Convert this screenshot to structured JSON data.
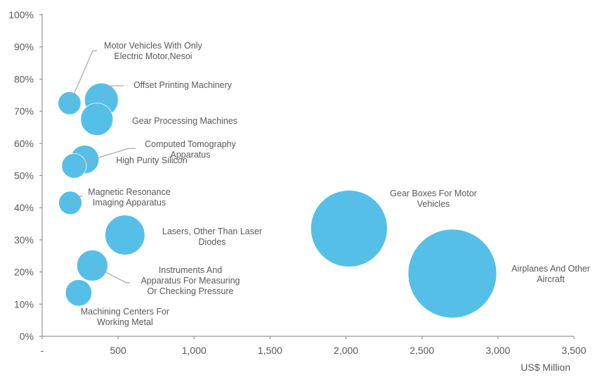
{
  "chart_data": {
    "type": "bubble",
    "title": "",
    "xlabel": "US$ Million",
    "ylabel": "",
    "xlim": [
      0,
      3500
    ],
    "ylim": [
      0,
      100
    ],
    "x_ticks": [
      {
        "value": 0,
        "label": "-"
      },
      {
        "value": 500,
        "label": "500"
      },
      {
        "value": 1000,
        "label": "1,000"
      },
      {
        "value": 1500,
        "label": "1,500"
      },
      {
        "value": 2000,
        "label": "2,000"
      },
      {
        "value": 2500,
        "label": "2,500"
      },
      {
        "value": 3000,
        "label": "3,000"
      },
      {
        "value": 3500,
        "label": "3,500"
      }
    ],
    "y_ticks": [
      {
        "value": 0,
        "label": "0%"
      },
      {
        "value": 10,
        "label": "10%"
      },
      {
        "value": 20,
        "label": "20%"
      },
      {
        "value": 30,
        "label": "30%"
      },
      {
        "value": 40,
        "label": "40%"
      },
      {
        "value": 50,
        "label": "50%"
      },
      {
        "value": 60,
        "label": "60%"
      },
      {
        "value": 70,
        "label": "70%"
      },
      {
        "value": 80,
        "label": "80%"
      },
      {
        "value": 90,
        "label": "90%"
      },
      {
        "value": 100,
        "label": "100%"
      }
    ],
    "bubble_color": "#55BFE8",
    "axis_color": "#7F7F7F",
    "grid": false,
    "legend": "none",
    "points": [
      {
        "name": "Motor Vehicles With Only Electric Motor,Nesoi",
        "label_lines": [
          "Motor Vehicles With Only",
          "Electric Motor,Nesoi"
        ],
        "x": 180,
        "y": 72.5,
        "size": 180
      },
      {
        "name": "Offset Printing Machinery",
        "label_lines": [
          "Offset Printing Machinery"
        ],
        "x": 390,
        "y": 73.5,
        "size": 390
      },
      {
        "name": "Gear Processing Machines",
        "label_lines": [
          "Gear Processing Machines"
        ],
        "x": 360,
        "y": 67.5,
        "size": 360
      },
      {
        "name": "Computed Tomography Apparatus",
        "label_lines": [
          "Computed Tomography",
          "Apparatus"
        ],
        "x": 280,
        "y": 55,
        "size": 280
      },
      {
        "name": "High Purity Silicon",
        "label_lines": [
          "High Purity Silicon"
        ],
        "x": 210,
        "y": 53,
        "size": 210
      },
      {
        "name": "Magnetic Resonance Imaging Apparatus",
        "label_lines": [
          "Magnetic Resonance",
          "Imaging Apparatus"
        ],
        "x": 185,
        "y": 41.5,
        "size": 185
      },
      {
        "name": "Lasers, Other Than Laser Diodes",
        "label_lines": [
          "Lasers, Other Than Laser",
          "Diodes"
        ],
        "x": 545,
        "y": 31.5,
        "size": 545
      },
      {
        "name": "Instruments And Apparatus For Measuring Or Checking Pressure",
        "label_lines": [
          "Instruments And",
          "Apparatus For Measuring",
          "Or Checking Pressure"
        ],
        "x": 330,
        "y": 22,
        "size": 330
      },
      {
        "name": "Machining Centers For Working Metal",
        "label_lines": [
          "Machining Centers For",
          "Working Metal"
        ],
        "x": 240,
        "y": 13.5,
        "size": 240
      },
      {
        "name": "Gear Boxes For Motor Vehicles",
        "label_lines": [
          "Gear Boxes For Motor",
          "Vehicles"
        ],
        "x": 2020,
        "y": 33.5,
        "size": 2020
      },
      {
        "name": "Airplanes And Other Aircraft",
        "label_lines": [
          "Airplanes And Other",
          "Aircraft"
        ],
        "x": 2700,
        "y": 19.5,
        "size": 2700
      }
    ]
  }
}
